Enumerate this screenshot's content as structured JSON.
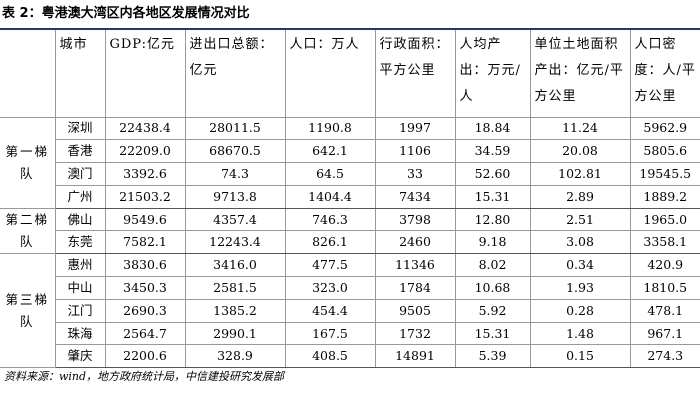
{
  "title": "表 2：粤港澳大湾区内各地区发展情况对比",
  "table": {
    "header": [
      "城市",
      "GDP:亿元",
      "进出口总额：亿元",
      "人口：万人",
      "行政面积：平方公里",
      "人均产出：万元/人",
      "单位土地面积产出：亿元/平方公里",
      "人口密度：人/平方公里"
    ],
    "groups": [
      {
        "label": "第一梯队",
        "rows": [
          [
            "深圳",
            "22438.4",
            "28011.5",
            "1190.8",
            "1997",
            "18.84",
            "11.24",
            "5962.9"
          ],
          [
            "香港",
            "22209.0",
            "68670.5",
            "642.1",
            "1106",
            "34.59",
            "20.08",
            "5805.6"
          ],
          [
            "澳门",
            "3392.6",
            "74.3",
            "64.5",
            "33",
            "52.60",
            "102.81",
            "19545.5"
          ],
          [
            "广州",
            "21503.2",
            "9713.8",
            "1404.4",
            "7434",
            "15.31",
            "2.89",
            "1889.2"
          ]
        ]
      },
      {
        "label": "第二梯队",
        "rows": [
          [
            "佛山",
            "9549.6",
            "4357.4",
            "746.3",
            "3798",
            "12.80",
            "2.51",
            "1965.0"
          ],
          [
            "东莞",
            "7582.1",
            "12243.4",
            "826.1",
            "2460",
            "9.18",
            "3.08",
            "3358.1"
          ]
        ]
      },
      {
        "label": "第三梯队",
        "rows": [
          [
            "惠州",
            "3830.6",
            "3416.0",
            "477.5",
            "11346",
            "8.02",
            "0.34",
            "420.9"
          ],
          [
            "中山",
            "3450.3",
            "2581.5",
            "323.0",
            "1784",
            "10.68",
            "1.93",
            "1810.5"
          ],
          [
            "江门",
            "2690.3",
            "1385.2",
            "454.4",
            "9505",
            "5.92",
            "0.28",
            "478.1"
          ],
          [
            "珠海",
            "2564.7",
            "2990.1",
            "167.5",
            "1732",
            "15.31",
            "1.48",
            "967.1"
          ],
          [
            "肇庆",
            "2200.6",
            "328.9",
            "408.5",
            "14891",
            "5.39",
            "0.15",
            "274.3"
          ]
        ]
      }
    ]
  },
  "source": "资料来源：wind，地方政府统计局，中信建投研究发展部"
}
